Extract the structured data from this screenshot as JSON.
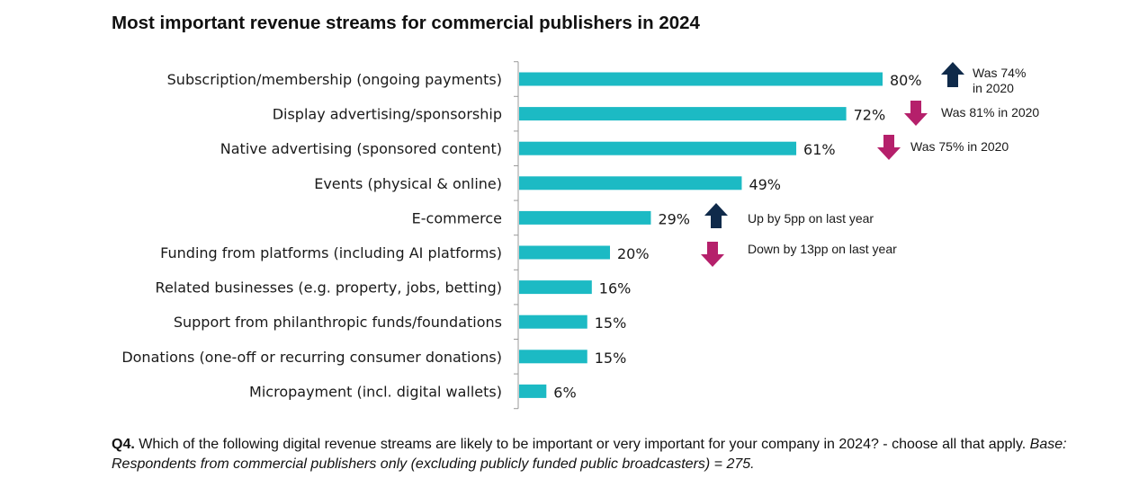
{
  "chart_data": {
    "type": "bar",
    "orientation": "horizontal",
    "title": "Most important revenue streams for commercial publishers in 2024",
    "categories": [
      "Subscription/membership (ongoing payments)",
      "Display advertising/sponsorship",
      "Native advertising (sponsored content)",
      "Events (physical & online)",
      "E-commerce",
      "Funding from platforms (including AI platforms)",
      "Related businesses (e.g. property, jobs, betting)",
      "Support from philanthropic funds/foundations",
      "Donations (one-off or recurring consumer donations)",
      "Micropayment (incl. digital wallets)"
    ],
    "values": [
      80,
      72,
      61,
      49,
      29,
      20,
      16,
      15,
      15,
      6
    ],
    "value_labels": [
      "80%",
      "72%",
      "61%",
      "49%",
      "29%",
      "20%",
      "16%",
      "15%",
      "15%",
      "6%"
    ],
    "xlim": [
      0,
      100
    ],
    "grid": false,
    "bar_color": "#1cbac4",
    "annotations": [
      {
        "category_index": 0,
        "direction": "up",
        "text": [
          "Was 74%",
          "in 2020"
        ]
      },
      {
        "category_index": 1,
        "direction": "down",
        "text": [
          "Was 81% in 2020"
        ]
      },
      {
        "category_index": 2,
        "direction": "down",
        "text": [
          "Was 75% in 2020"
        ]
      },
      {
        "category_index": 4,
        "direction": "up",
        "text": [
          "Up by 5pp on last year"
        ]
      },
      {
        "category_index": 5,
        "direction": "down",
        "text": [
          "Down by 13pp on last year"
        ]
      }
    ],
    "colors": {
      "up_arrow": "#0f2a4a",
      "down_arrow": "#b5206b"
    }
  },
  "footnote": {
    "question_label": "Q4.",
    "question_text": " Which of the following digital revenue streams are likely to be important or very important for your company in 2024? - choose all that apply. ",
    "base_text": "Base: Respondents from commercial publishers only (excluding publicly funded public broadcasters) = 275."
  }
}
